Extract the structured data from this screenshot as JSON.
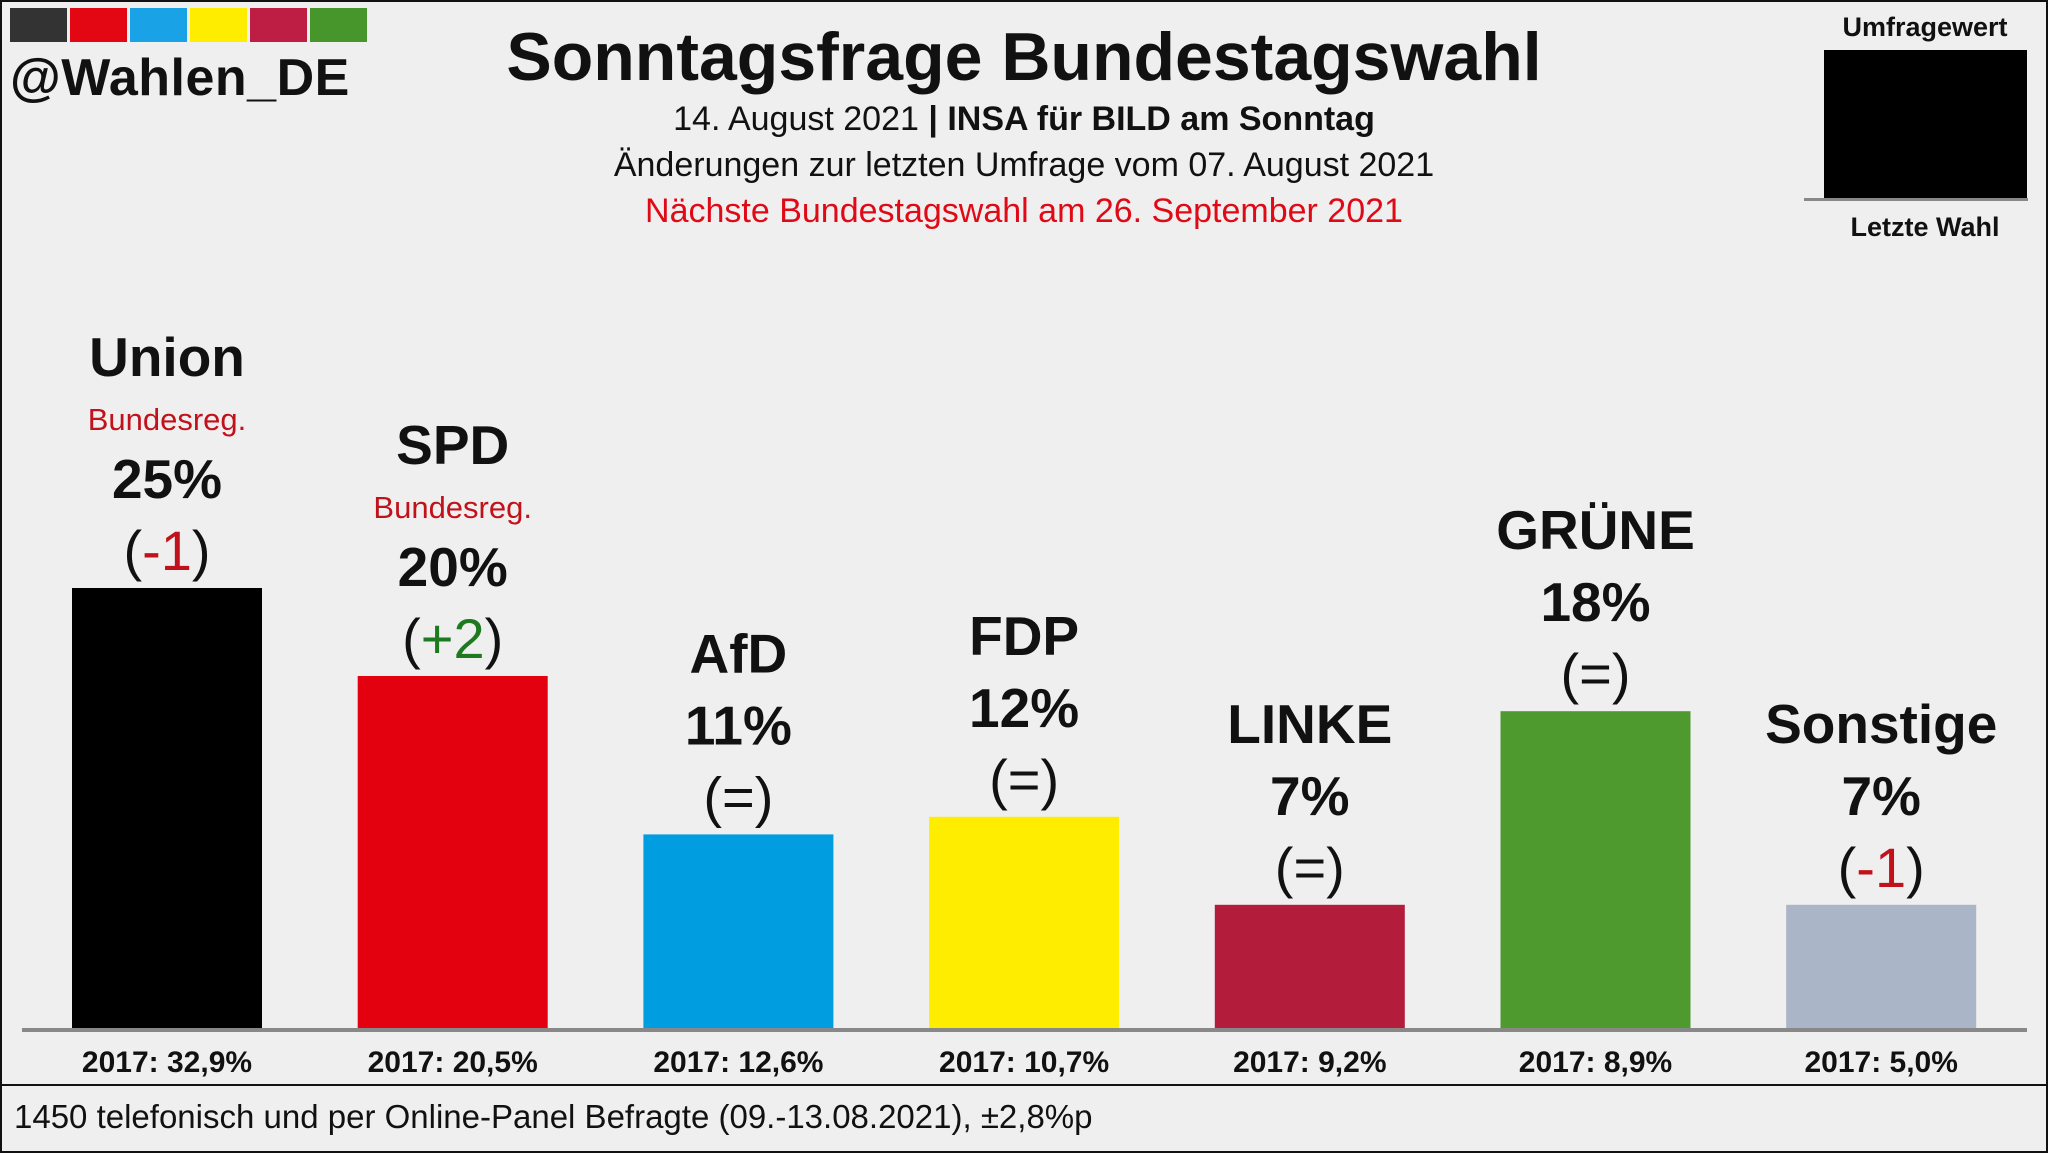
{
  "header": {
    "handle": "@Wahlen_DE",
    "logo_colors": [
      "#333333",
      "#e30613",
      "#1aa2e6",
      "#ffed00",
      "#be1e43",
      "#46962b"
    ],
    "title": "Sonntagsfrage Bundestagswahl",
    "date": "14. August 2021",
    "separator": "|",
    "source": "INSA für BILD am Sonntag",
    "changes_note": "Änderungen zur letzten Umfrage vom 07. August 2021",
    "next_election": "Nächste Bundestagswahl am 26. September 2021"
  },
  "legend": {
    "top_label": "Umfragewert",
    "bottom_label": "Letzte Wahl"
  },
  "chart_data": {
    "type": "bar",
    "title": "Sonntagsfrage Bundestagswahl",
    "categories": [
      "Union",
      "SPD",
      "AfD",
      "FDP",
      "LINKE",
      "GRÜNE",
      "Sonstige"
    ],
    "values": [
      25,
      20,
      11,
      12,
      7,
      18,
      7
    ],
    "value_labels": [
      "25%",
      "20%",
      "11%",
      "12%",
      "7%",
      "18%",
      "7%"
    ],
    "colors": [
      "#000000",
      "#e3000f",
      "#009ee0",
      "#ffed00",
      "#b41c3c",
      "#4f9a2f",
      "#aab5c8"
    ],
    "government_tags": [
      "Bundesreg.",
      "Bundesreg.",
      "",
      "",
      "",
      "",
      ""
    ],
    "changes": [
      {
        "open": "(",
        "value": "-1",
        "close": ")",
        "color": "#c1121b"
      },
      {
        "open": "(",
        "value": "+2",
        "close": ")",
        "color": "#1e7a1e"
      },
      {
        "open": "(",
        "value": "=",
        "close": ")",
        "color": "#111111"
      },
      {
        "open": "(",
        "value": "=",
        "close": ")",
        "color": "#111111"
      },
      {
        "open": "(",
        "value": "=",
        "close": ")",
        "color": "#111111"
      },
      {
        "open": "(",
        "value": "=",
        "close": ")",
        "color": "#111111"
      },
      {
        "open": "(",
        "value": "-1",
        "close": ")",
        "color": "#c1121b"
      }
    ],
    "previous_election": [
      "2017: 32,9%",
      "2017: 20,5%",
      "2017: 12,6%",
      "2017: 10,7%",
      "2017: 9,2%",
      "2017: 8,9%",
      "2017: 5,0%"
    ],
    "ylim": [
      0,
      25
    ],
    "grid": false,
    "legend_position": "top-right"
  },
  "footer": {
    "note": "1450 telefonisch und per Online-Panel Befragte (09.-13.08.2021), ±2,8%p"
  }
}
